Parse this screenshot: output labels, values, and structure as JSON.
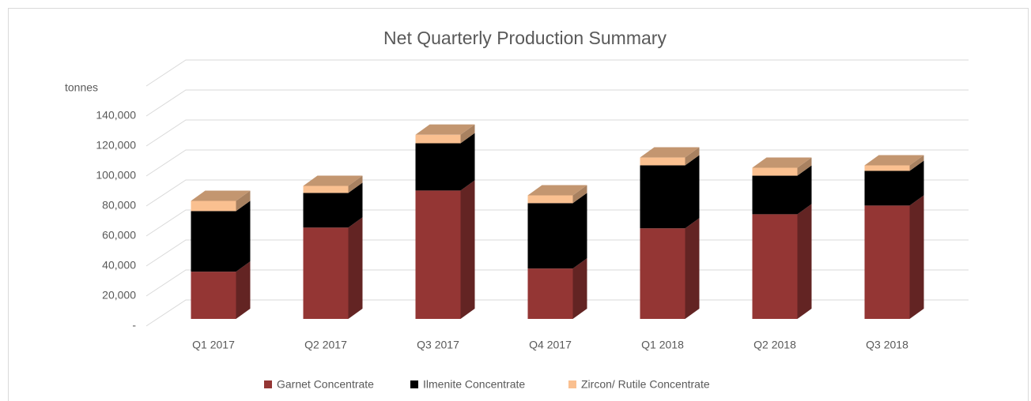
{
  "chart_data": {
    "type": "bar3d_stacked",
    "title": "Net Quarterly Production Summary",
    "y_axis_label": "tonnes",
    "categories": [
      "Q1 2017",
      "Q2 2017",
      "Q3 2017",
      "Q4 2017",
      "Q1 2018",
      "Q2 2018",
      "Q3 2018"
    ],
    "series": [
      {
        "name": "Garnet Concentrate",
        "color": "#943634",
        "values": [
          31500,
          60900,
          85600,
          33600,
          60400,
          69800,
          75600
        ]
      },
      {
        "name": "Ilmenite Concentrate",
        "color": "#000000",
        "values": [
          40400,
          23100,
          31500,
          43600,
          42000,
          25700,
          23100
        ]
      },
      {
        "name": "Zircon/ Rutile Concentrate",
        "color": "#fac090",
        "values": [
          6800,
          4700,
          5700,
          5200,
          5200,
          5300,
          3700
        ]
      }
    ],
    "ylim": [
      0,
      140000
    ],
    "yticks": [
      {
        "value": 0,
        "label": "-"
      },
      {
        "value": 20000,
        "label": "20,000"
      },
      {
        "value": 40000,
        "label": "40,000"
      },
      {
        "value": 60000,
        "label": "60,000"
      },
      {
        "value": 80000,
        "label": "80,000"
      },
      {
        "value": 100000,
        "label": "100,000"
      },
      {
        "value": 120000,
        "label": "120,000"
      },
      {
        "value": 140000,
        "label": "140,000"
      }
    ],
    "grid": true,
    "legend": "bottom"
  }
}
